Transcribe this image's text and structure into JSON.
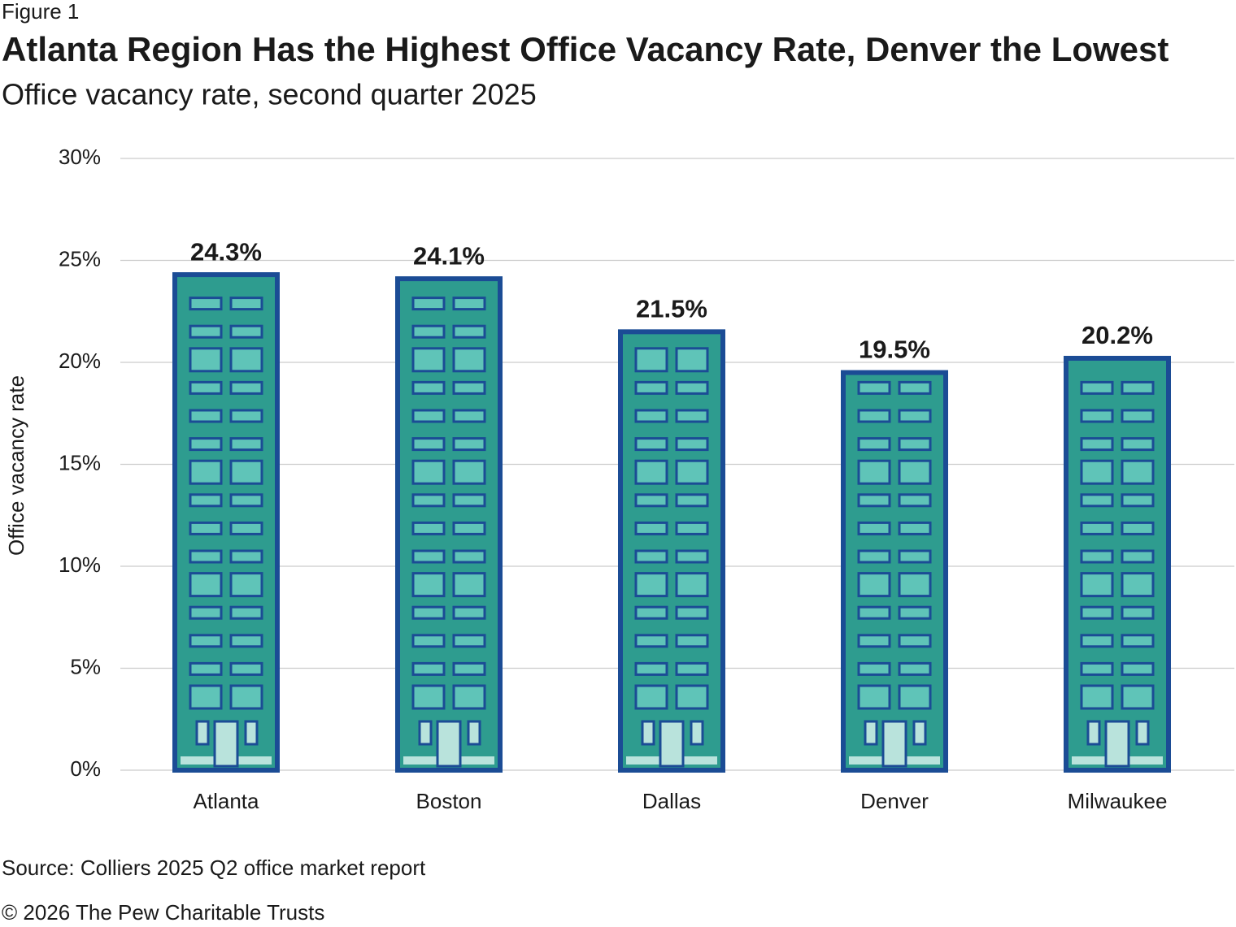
{
  "chart_data": {
    "type": "bar",
    "figure_label": "Figure 1",
    "title": "Atlanta Region Has the Highest Office Vacancy Rate, Denver the Lowest",
    "subtitle": "Office vacancy rate, second quarter 2025",
    "y_label": "Office vacancy rate",
    "categories": [
      "Atlanta",
      "Boston",
      "Dallas",
      "Denver",
      "Milwaukee"
    ],
    "values": [
      24.3,
      24.1,
      21.5,
      19.5,
      20.2
    ],
    "value_labels": [
      "24.3%",
      "24.1%",
      "21.5%",
      "19.5%",
      "20.2%"
    ],
    "color": "#2e9c8f",
    "ylim": [
      0,
      30
    ],
    "yticks": [
      {
        "value": 0,
        "label": "0%"
      },
      {
        "value": 5,
        "label": "5%"
      },
      {
        "value": 10,
        "label": "10%"
      },
      {
        "value": 15,
        "label": "15%"
      },
      {
        "value": 20,
        "label": "20%"
      },
      {
        "value": 25,
        "label": "25%"
      },
      {
        "value": 30,
        "label": "30%"
      }
    ],
    "grid": true,
    "source": "Source: Colliers 2025 Q2 office market report",
    "copyright": "© 2026 The Pew Charitable Trusts"
  }
}
